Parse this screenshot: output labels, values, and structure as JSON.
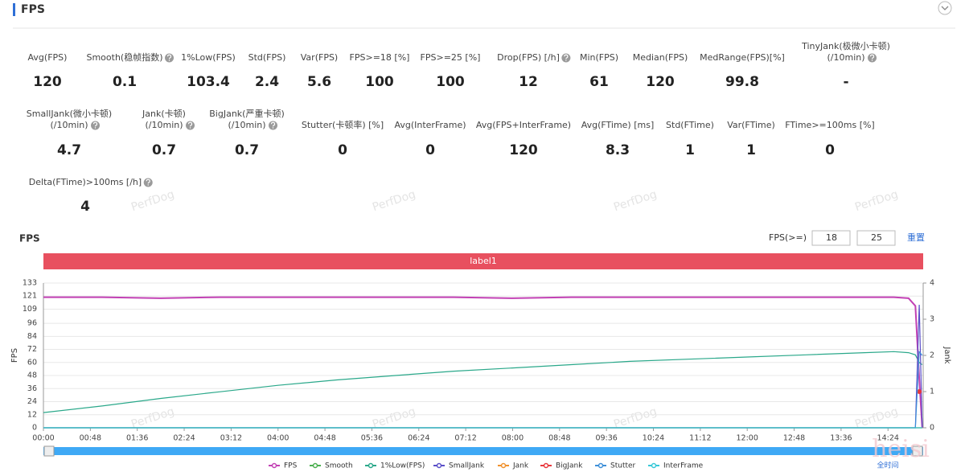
{
  "header": {
    "title": "FPS"
  },
  "metrics": {
    "rows": [
      [
        {
          "label": "Avg(FPS)",
          "value": "120"
        },
        {
          "label": "Smooth(稳帧指数)",
          "value": "0.1"
        },
        {
          "label": "1%Low(FPS)",
          "value": "103.4"
        },
        {
          "label": "Std(FPS)",
          "value": "2.4"
        },
        {
          "label": "Var(FPS)",
          "value": "5.6"
        },
        {
          "label": "FPS>=18 [%]",
          "value": "100"
        },
        {
          "label": "FPS>=25 [%]",
          "value": "100"
        },
        {
          "label": "Drop(FPS) [/h]",
          "value": "12"
        },
        {
          "label": "Min(FPS)",
          "value": "61"
        },
        {
          "label": "Median(FPS)",
          "value": "120"
        },
        {
          "label": "MedRange(FPS)[%]",
          "value": "99.8"
        },
        {
          "label": "TinyJank(极微小卡顿)",
          "sublabel": "(/10min)",
          "value": "-"
        }
      ],
      [
        {
          "label": "SmallJank(微小卡顿)",
          "sublabel": "(/10min)",
          "value": "4.7"
        },
        {
          "label": "Jank(卡顿)",
          "sublabel": "(/10min)",
          "value": "0.7"
        },
        {
          "label": "BigJank(严重卡顿)",
          "sublabel": "(/10min)",
          "value": "0.7"
        },
        {
          "label": "Stutter(卡顿率) [%]",
          "value": "0"
        },
        {
          "label": "Avg(InterFrame)",
          "value": "0"
        },
        {
          "label": "Avg(FPS+InterFrame)",
          "value": "120"
        },
        {
          "label": "Avg(FTime) [ms]",
          "value": "8.3"
        },
        {
          "label": "Std(FTime)",
          "value": "1"
        },
        {
          "label": "Var(FTime)",
          "value": "1"
        },
        {
          "label": "FTime>=100ms [%]",
          "value": "0"
        }
      ],
      [
        {
          "label": "Delta(FTime)>100ms [/h]",
          "value": "4"
        }
      ]
    ]
  },
  "controls": {
    "threshold_label": "FPS(>=)",
    "threshold_1": "18",
    "threshold_2": "25",
    "reset": "重置",
    "range_label": "全时间"
  },
  "watermark": "PerfDog",
  "overlay_watermark": "heisi",
  "chart_data": {
    "type": "line",
    "title": "FPS",
    "band_label": "label1",
    "y_label": "FPS",
    "y2_label": "Jank",
    "x": [
      0,
      60,
      120,
      180,
      240,
      300,
      360,
      420,
      480,
      540,
      600,
      660,
      720,
      780,
      840,
      870,
      885,
      892,
      896,
      899
    ],
    "xlim": [
      0,
      900
    ],
    "xticks": [
      {
        "value": 0,
        "label": "00:00"
      },
      {
        "value": 48,
        "label": "00:48"
      },
      {
        "value": 96,
        "label": "01:36"
      },
      {
        "value": 144,
        "label": "02:24"
      },
      {
        "value": 192,
        "label": "03:12"
      },
      {
        "value": 240,
        "label": "04:00"
      },
      {
        "value": 288,
        "label": "04:48"
      },
      {
        "value": 336,
        "label": "05:36"
      },
      {
        "value": 384,
        "label": "06:24"
      },
      {
        "value": 432,
        "label": "07:12"
      },
      {
        "value": 480,
        "label": "08:00"
      },
      {
        "value": 528,
        "label": "08:48"
      },
      {
        "value": 576,
        "label": "09:36"
      },
      {
        "value": 624,
        "label": "10:24"
      },
      {
        "value": 672,
        "label": "11:12"
      },
      {
        "value": 720,
        "label": "12:00"
      },
      {
        "value": 768,
        "label": "12:48"
      },
      {
        "value": 816,
        "label": "13:36"
      },
      {
        "value": 864,
        "label": "14:24"
      }
    ],
    "ylim": [
      0,
      133
    ],
    "yticks": [
      0,
      12,
      24,
      36,
      48,
      60,
      72,
      84,
      96,
      109,
      121,
      133
    ],
    "y2lim": [
      0,
      4
    ],
    "y2ticks": [
      0,
      1,
      2,
      3,
      4
    ],
    "grid": true,
    "series": [
      {
        "name": "FPS",
        "color": "#c241b4",
        "values": [
          120,
          120,
          119,
          120,
          120,
          120,
          120,
          120,
          119,
          120,
          120,
          120,
          120,
          120,
          120,
          120,
          119,
          112,
          45,
          0
        ]
      },
      {
        "name": "Smooth",
        "color": "#4cb050",
        "values": [
          0,
          0,
          0,
          0,
          0,
          0,
          0,
          0,
          0,
          0,
          0,
          0,
          0,
          0,
          0,
          0,
          0,
          0,
          0,
          0
        ]
      },
      {
        "name": "1%Low(FPS)",
        "color": "#2aa88a",
        "values": [
          14,
          20,
          27,
          33,
          39,
          44,
          48,
          52,
          55,
          58,
          61,
          63,
          65,
          67,
          69,
          70,
          69,
          67,
          60,
          58
        ]
      },
      {
        "name": "SmallJank",
        "color": "#5a4fc8",
        "axis": "y2",
        "values": [
          0,
          0,
          0,
          0,
          0,
          0,
          0,
          0,
          0,
          0,
          0,
          0,
          0,
          0,
          0,
          0,
          0,
          0,
          3.4,
          0
        ]
      },
      {
        "name": "Jank",
        "color": "#f0922e",
        "axis": "y2",
        "values": [
          0,
          0,
          0,
          0,
          0,
          0,
          0,
          0,
          0,
          0,
          0,
          0,
          0,
          0,
          0,
          0,
          0,
          0,
          0,
          0
        ]
      },
      {
        "name": "BigJank",
        "color": "#e8383d",
        "axis": "y2",
        "values": [
          null,
          null,
          null,
          null,
          null,
          null,
          null,
          null,
          null,
          null,
          null,
          null,
          null,
          null,
          null,
          null,
          null,
          null,
          1,
          null
        ]
      },
      {
        "name": "Stutter",
        "color": "#3d8fd8",
        "axis": "y2",
        "values": [
          0,
          0,
          0,
          0,
          0,
          0,
          0,
          0,
          0,
          0,
          0,
          0,
          0,
          0,
          0,
          0,
          0,
          0,
          2.1,
          2
        ]
      },
      {
        "name": "InterFrame",
        "color": "#38c8d8",
        "axis": "y2",
        "values": [
          0,
          0,
          0,
          0,
          0,
          0,
          0,
          0,
          0,
          0,
          0,
          0,
          0,
          0,
          0,
          0,
          0,
          0,
          0,
          0
        ]
      }
    ]
  }
}
